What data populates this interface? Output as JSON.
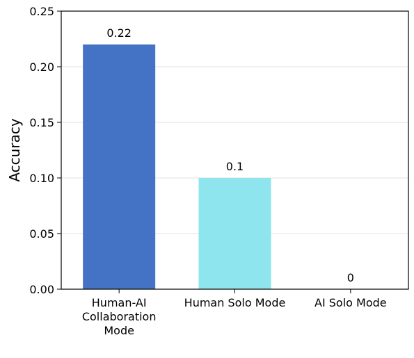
{
  "chart_data": {
    "type": "bar",
    "categories": [
      "Human-AI Collaboration Mode",
      "Human Solo Mode",
      "AI Solo Mode"
    ],
    "category_lines": [
      [
        "Human-AI",
        "Collaboration",
        "Mode"
      ],
      [
        "Human Solo Mode"
      ],
      [
        "AI Solo Mode"
      ]
    ],
    "values": [
      0.22,
      0.1,
      0
    ],
    "value_labels": [
      "0.22",
      "0.1",
      "0"
    ],
    "colors": [
      "#4472C4",
      "#8EE5EE",
      "#808080"
    ],
    "title": "",
    "xlabel": "",
    "ylabel": "Accuracy",
    "ylim": [
      0,
      0.25
    ],
    "yticks": [
      0.0,
      0.05,
      0.1,
      0.15,
      0.2,
      0.25
    ],
    "ytick_labels": [
      "0.00",
      "0.05",
      "0.10",
      "0.15",
      "0.20",
      "0.25"
    ],
    "grid": "horizontal"
  }
}
